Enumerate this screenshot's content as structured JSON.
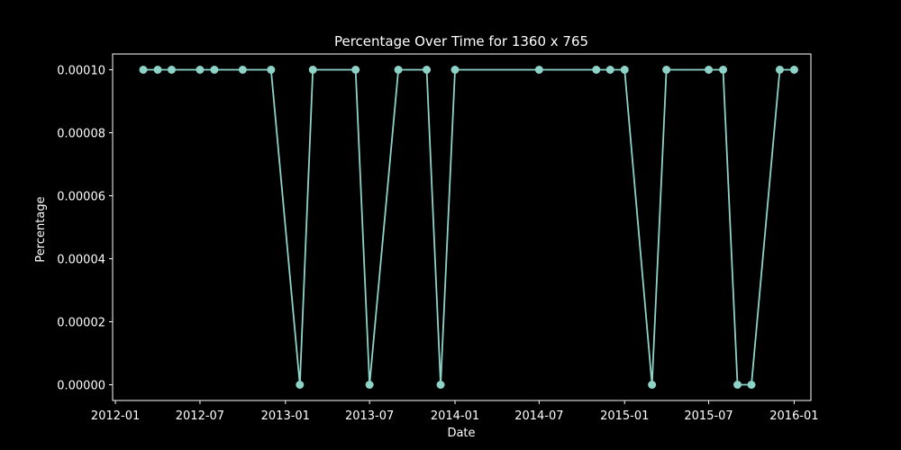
{
  "chart_data": {
    "type": "line",
    "title": "Percentage Over Time for 1360 x 765",
    "xlabel": "Date",
    "ylabel": "Percentage",
    "xlim": [
      "2011-12-26",
      "2016-02-06"
    ],
    "ylim": [
      -5e-06,
      0.000105
    ],
    "x_ticks": [
      {
        "date": "2012-01-01",
        "label": "2012-01"
      },
      {
        "date": "2012-07-01",
        "label": "2012-07"
      },
      {
        "date": "2013-01-01",
        "label": "2013-01"
      },
      {
        "date": "2013-07-01",
        "label": "2013-07"
      },
      {
        "date": "2014-01-01",
        "label": "2014-01"
      },
      {
        "date": "2014-07-01",
        "label": "2014-07"
      },
      {
        "date": "2015-01-01",
        "label": "2015-01"
      },
      {
        "date": "2015-07-01",
        "label": "2015-07"
      },
      {
        "date": "2016-01-01",
        "label": "2016-01"
      }
    ],
    "y_ticks": [
      {
        "value": 0.0,
        "label": "0.00000"
      },
      {
        "value": 2e-05,
        "label": "0.00002"
      },
      {
        "value": 4e-05,
        "label": "0.00004"
      },
      {
        "value": 6e-05,
        "label": "0.00006"
      },
      {
        "value": 8e-05,
        "label": "0.00008"
      },
      {
        "value": 0.0001,
        "label": "0.00010"
      }
    ],
    "grid": false,
    "series": [
      {
        "color": "#8dd3c7",
        "x": [
          "2012-03-01",
          "2012-04-01",
          "2012-05-01",
          "2012-07-01",
          "2012-08-01",
          "2012-10-01",
          "2012-12-01",
          "2013-02-01",
          "2013-03-01",
          "2013-06-01",
          "2013-07-01",
          "2013-09-01",
          "2013-11-01",
          "2013-12-01",
          "2014-01-01",
          "2014-07-01",
          "2014-11-01",
          "2014-12-01",
          "2015-01-01",
          "2015-03-01",
          "2015-04-01",
          "2015-07-01",
          "2015-08-01",
          "2015-09-01",
          "2015-10-01",
          "2015-12-01",
          "2016-01-01"
        ],
        "values": [
          0.0001,
          0.0001,
          0.0001,
          0.0001,
          0.0001,
          0.0001,
          0.0001,
          0.0,
          0.0001,
          0.0001,
          0.0,
          0.0001,
          0.0001,
          0.0,
          0.0001,
          0.0001,
          0.0001,
          0.0001,
          0.0001,
          0.0,
          0.0001,
          0.0001,
          0.0001,
          0.0,
          0.0,
          0.0001,
          0.0001
        ]
      }
    ]
  },
  "colors": {
    "background": "#000000",
    "axes": "#ffffff",
    "line": "#8dd3c7"
  }
}
